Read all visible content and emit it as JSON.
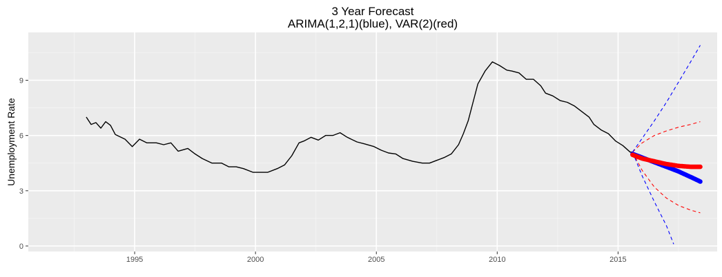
{
  "chart_data": {
    "type": "line",
    "title": "3 Year Forecast",
    "subtitle": "ARIMA(1,2,1)(blue), VAR(2)(red)",
    "xlabel": "",
    "ylabel": "Unemployment Rate",
    "xlim": [
      1990.6,
      2019.1
    ],
    "ylim": [
      -0.3,
      11.6
    ],
    "xticks": [
      1995,
      2000,
      2005,
      2010,
      2015
    ],
    "xtick_labels": [
      "1995",
      "2000",
      "2005",
      "2010",
      "2015"
    ],
    "xminor": [
      1992.5,
      1997.5,
      2002.5,
      2007.5,
      2012.5,
      2017.5
    ],
    "yticks": [
      0,
      3,
      6,
      9
    ],
    "ytick_labels": [
      "0",
      "3",
      "6",
      "9"
    ],
    "yminor": [
      1.5,
      4.5,
      7.5,
      10.5
    ],
    "grid": true,
    "background": "#ebebeb",
    "series": [
      {
        "role": "history",
        "color": "#000000",
        "style": "solid",
        "points": [
          [
            1993.0,
            7.0
          ],
          [
            1993.2,
            6.6
          ],
          [
            1993.4,
            6.7
          ],
          [
            1993.6,
            6.4
          ],
          [
            1993.8,
            6.75
          ],
          [
            1994.0,
            6.55
          ],
          [
            1994.2,
            6.05
          ],
          [
            1994.6,
            5.8
          ],
          [
            1994.9,
            5.4
          ],
          [
            1995.2,
            5.8
          ],
          [
            1995.5,
            5.6
          ],
          [
            1995.9,
            5.6
          ],
          [
            1996.2,
            5.5
          ],
          [
            1996.5,
            5.6
          ],
          [
            1996.8,
            5.15
          ],
          [
            1997.2,
            5.3
          ],
          [
            1997.5,
            5.0
          ],
          [
            1997.8,
            4.75
          ],
          [
            1998.2,
            4.5
          ],
          [
            1998.6,
            4.5
          ],
          [
            1998.9,
            4.3
          ],
          [
            1999.2,
            4.3
          ],
          [
            1999.5,
            4.2
          ],
          [
            1999.9,
            4.0
          ],
          [
            2000.2,
            4.0
          ],
          [
            2000.5,
            4.0
          ],
          [
            2000.9,
            4.2
          ],
          [
            2001.2,
            4.4
          ],
          [
            2001.5,
            4.9
          ],
          [
            2001.8,
            5.6
          ],
          [
            2002.0,
            5.7
          ],
          [
            2002.3,
            5.9
          ],
          [
            2002.6,
            5.75
          ],
          [
            2002.9,
            6.0
          ],
          [
            2003.2,
            6.0
          ],
          [
            2003.5,
            6.15
          ],
          [
            2003.8,
            5.9
          ],
          [
            2004.2,
            5.65
          ],
          [
            2004.5,
            5.55
          ],
          [
            2004.9,
            5.4
          ],
          [
            2005.2,
            5.2
          ],
          [
            2005.5,
            5.05
          ],
          [
            2005.8,
            5.0
          ],
          [
            2006.1,
            4.75
          ],
          [
            2006.5,
            4.6
          ],
          [
            2006.9,
            4.5
          ],
          [
            2007.2,
            4.5
          ],
          [
            2007.5,
            4.65
          ],
          [
            2007.8,
            4.8
          ],
          [
            2008.1,
            5.0
          ],
          [
            2008.4,
            5.5
          ],
          [
            2008.6,
            6.1
          ],
          [
            2008.8,
            6.8
          ],
          [
            2009.0,
            7.8
          ],
          [
            2009.2,
            8.8
          ],
          [
            2009.5,
            9.5
          ],
          [
            2009.8,
            10.0
          ],
          [
            2010.1,
            9.8
          ],
          [
            2010.4,
            9.55
          ],
          [
            2010.6,
            9.5
          ],
          [
            2010.9,
            9.4
          ],
          [
            2011.2,
            9.05
          ],
          [
            2011.5,
            9.05
          ],
          [
            2011.8,
            8.7
          ],
          [
            2012.0,
            8.3
          ],
          [
            2012.3,
            8.15
          ],
          [
            2012.6,
            7.9
          ],
          [
            2012.9,
            7.8
          ],
          [
            2013.2,
            7.6
          ],
          [
            2013.5,
            7.3
          ],
          [
            2013.8,
            7.0
          ],
          [
            2014.0,
            6.6
          ],
          [
            2014.3,
            6.3
          ],
          [
            2014.6,
            6.1
          ],
          [
            2014.9,
            5.7
          ],
          [
            2015.2,
            5.45
          ],
          [
            2015.5,
            5.1
          ],
          [
            2015.6,
            5.1
          ]
        ]
      },
      {
        "role": "var-lower",
        "color": "#ff0000",
        "style": "dashed",
        "points": [
          [
            2015.6,
            5.1
          ],
          [
            2016.0,
            4.1
          ],
          [
            2016.5,
            3.2
          ],
          [
            2017.0,
            2.6
          ],
          [
            2017.5,
            2.2
          ],
          [
            2018.0,
            1.95
          ],
          [
            2018.4,
            1.8
          ]
        ]
      },
      {
        "role": "var-upper",
        "color": "#ff0000",
        "style": "dashed",
        "points": [
          [
            2015.6,
            5.1
          ],
          [
            2016.0,
            5.6
          ],
          [
            2016.5,
            6.0
          ],
          [
            2017.0,
            6.25
          ],
          [
            2017.5,
            6.45
          ],
          [
            2018.0,
            6.6
          ],
          [
            2018.4,
            6.75
          ]
        ]
      },
      {
        "role": "arima-lower",
        "color": "#0000ff",
        "style": "dashed",
        "points": [
          [
            2015.6,
            5.1
          ],
          [
            2016.0,
            3.8
          ],
          [
            2016.5,
            2.4
          ],
          [
            2017.0,
            1.1
          ],
          [
            2017.3,
            0.1
          ]
        ]
      },
      {
        "role": "arima-upper",
        "color": "#0000ff",
        "style": "dashed",
        "points": [
          [
            2015.6,
            5.1
          ],
          [
            2016.0,
            5.85
          ],
          [
            2016.5,
            6.8
          ],
          [
            2017.0,
            7.8
          ],
          [
            2017.5,
            8.9
          ],
          [
            2018.0,
            10.0
          ],
          [
            2018.4,
            10.9
          ]
        ]
      },
      {
        "role": "arima-forecast",
        "color": "#0000ff",
        "style": "points",
        "points": [
          [
            2015.6,
            5.0
          ],
          [
            2016.0,
            4.8
          ],
          [
            2016.5,
            4.55
          ],
          [
            2017.0,
            4.3
          ],
          [
            2017.5,
            4.05
          ],
          [
            2018.0,
            3.75
          ],
          [
            2018.4,
            3.5
          ]
        ]
      },
      {
        "role": "var-forecast",
        "color": "#ff0000",
        "style": "points",
        "points": [
          [
            2015.6,
            4.95
          ],
          [
            2016.0,
            4.75
          ],
          [
            2016.5,
            4.6
          ],
          [
            2017.0,
            4.45
          ],
          [
            2017.5,
            4.35
          ],
          [
            2018.0,
            4.3
          ],
          [
            2018.4,
            4.3
          ]
        ]
      }
    ]
  }
}
